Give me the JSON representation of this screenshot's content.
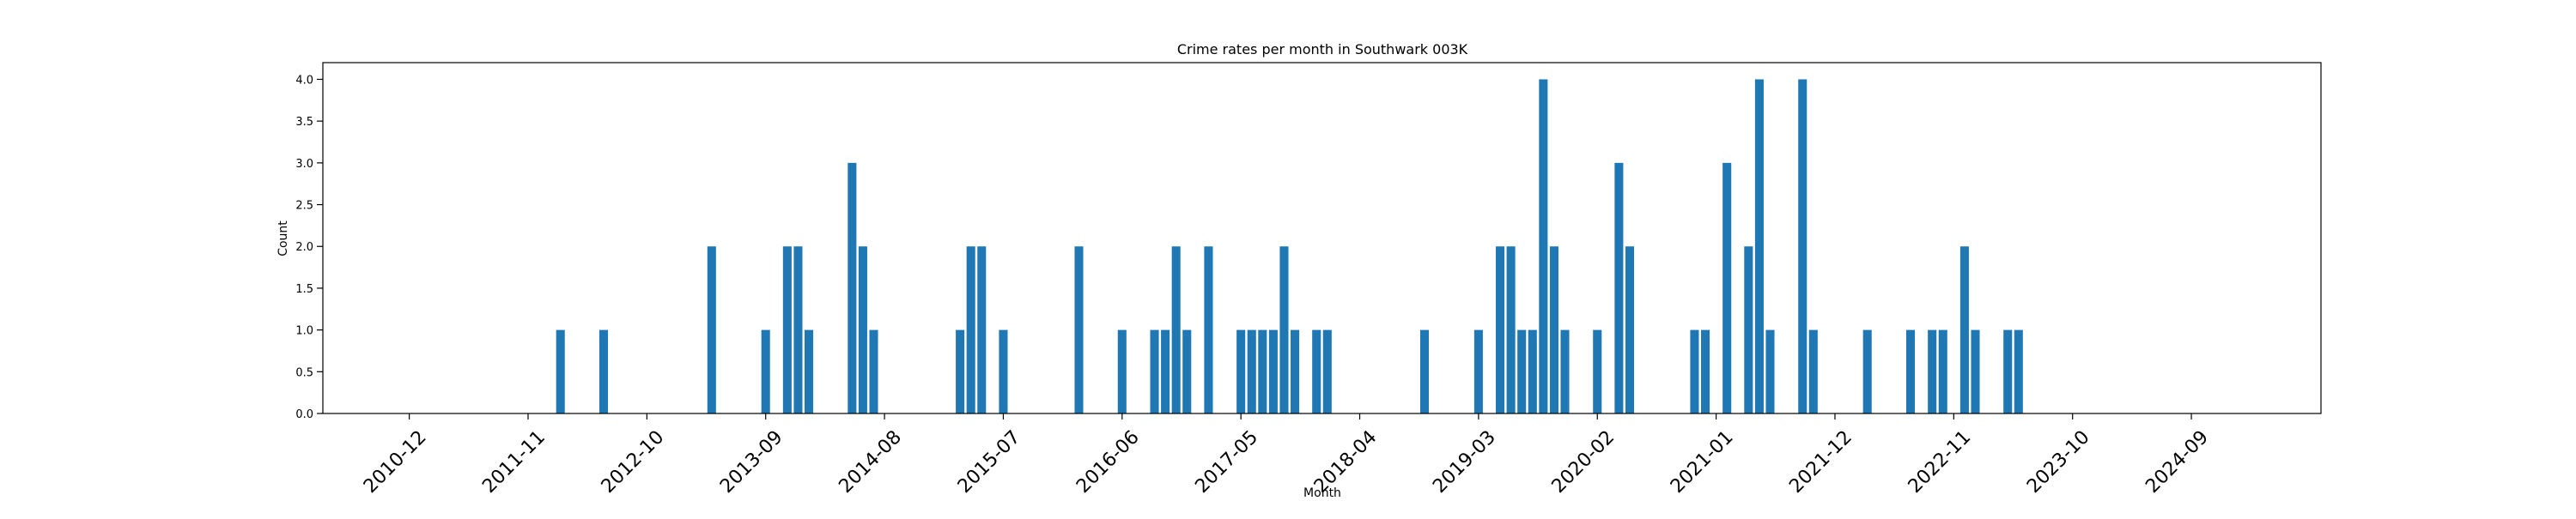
{
  "chart_data": {
    "type": "bar",
    "title": "Crime rates per month in Southwark 003K",
    "xlabel": "Month",
    "ylabel": "Count",
    "ylim": [
      0,
      4.2
    ],
    "yticks": [
      "0.0",
      "0.5",
      "1.0",
      "1.5",
      "2.0",
      "2.5",
      "3.0",
      "3.5",
      "4.0"
    ],
    "xlim": [
      "2010-04",
      "2025-09"
    ],
    "xticks": [
      "2010-12",
      "2011-11",
      "2012-10",
      "2013-09",
      "2014-08",
      "2015-07",
      "2016-06",
      "2017-05",
      "2018-04",
      "2019-03",
      "2020-02",
      "2021-01",
      "2021-12",
      "2022-11",
      "2023-10",
      "2024-09"
    ],
    "grid": false,
    "legend": "none",
    "bar_color": "#1f77b4",
    "categories": [
      "2012-02",
      "2012-06",
      "2013-04",
      "2013-09",
      "2013-11",
      "2013-12",
      "2014-01",
      "2014-05",
      "2014-06",
      "2014-07",
      "2015-03",
      "2015-04",
      "2015-05",
      "2015-07",
      "2016-02",
      "2016-06",
      "2016-09",
      "2016-10",
      "2016-11",
      "2016-12",
      "2017-02",
      "2017-05",
      "2017-06",
      "2017-07",
      "2017-08",
      "2017-09",
      "2017-10",
      "2017-12",
      "2018-01",
      "2018-10",
      "2019-03",
      "2019-05",
      "2019-06",
      "2019-07",
      "2019-08",
      "2019-09",
      "2019-10",
      "2019-11",
      "2020-02",
      "2020-04",
      "2020-05",
      "2020-11",
      "2020-12",
      "2021-02",
      "2021-04",
      "2021-05",
      "2021-06",
      "2021-09",
      "2021-10",
      "2022-03",
      "2022-07",
      "2022-09",
      "2022-10",
      "2022-12",
      "2023-01",
      "2023-04",
      "2023-05"
    ],
    "values": [
      1,
      1,
      2,
      1,
      2,
      2,
      1,
      3,
      2,
      1,
      1,
      2,
      2,
      1,
      2,
      1,
      1,
      1,
      2,
      1,
      2,
      1,
      1,
      1,
      1,
      2,
      1,
      1,
      1,
      1,
      1,
      2,
      2,
      1,
      1,
      4,
      2,
      1,
      1,
      3,
      2,
      1,
      1,
      3,
      2,
      4,
      1,
      4,
      1,
      1,
      1,
      1,
      1,
      2,
      1,
      1,
      1
    ]
  }
}
